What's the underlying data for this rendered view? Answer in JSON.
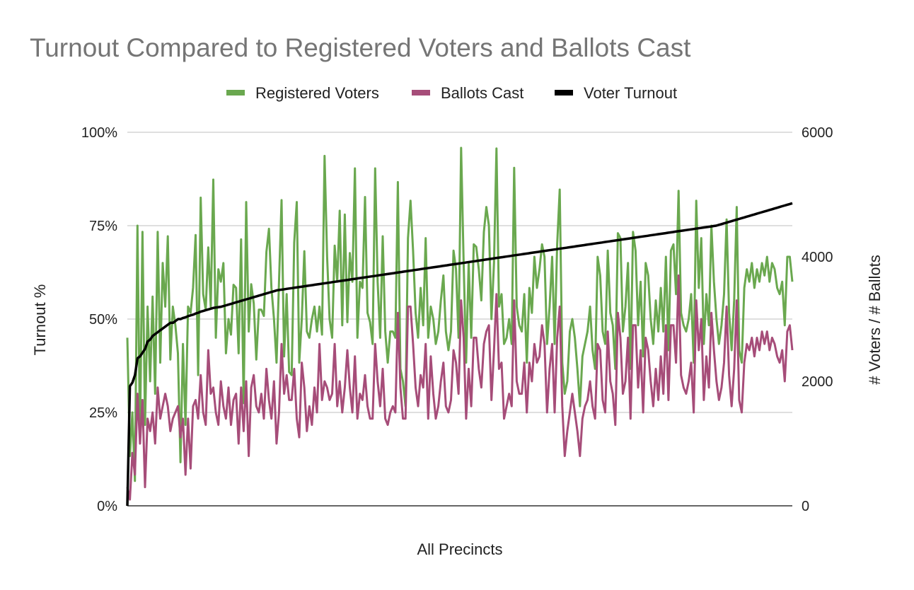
{
  "chart_data": {
    "type": "line",
    "title": "Turnout Compared to Registered Voters and Ballots Cast",
    "xlabel": "All Precincts",
    "ylabel_left": "Turnout %",
    "ylabel_right": "# Voters / # Ballots",
    "ylim_left": [
      0,
      1
    ],
    "ylim_right": [
      0,
      6000
    ],
    "left_ticks": [
      "0%",
      "25%",
      "50%",
      "75%",
      "100%"
    ],
    "right_ticks": [
      "0",
      "2000",
      "4000",
      "6000"
    ],
    "grid": true,
    "legend_position": "top",
    "colors": {
      "registered": "#6aa84f",
      "ballots": "#a64d79",
      "turnout": "#000000",
      "title": "#757575",
      "grid": "#cccccc"
    },
    "series": [
      {
        "name": "Registered Voters",
        "axis": "right",
        "values": [
          2700,
          800,
          1500,
          400,
          4500,
          1100,
          4400,
          1300,
          3200,
          2000,
          3360,
          1800,
          4400,
          2300,
          3900,
          3200,
          4330,
          2350,
          3200,
          2900,
          2450,
          700,
          2600,
          1300,
          3200,
          3100,
          3500,
          4350,
          2100,
          4950,
          3400,
          3150,
          4150,
          3200,
          5240,
          2700,
          3800,
          3600,
          3900,
          2450,
          3000,
          2750,
          3550,
          3500,
          2450,
          4280,
          1650,
          4880,
          2800,
          3560,
          3250,
          2350,
          3150,
          3150,
          3050,
          4080,
          4450,
          3500,
          3000,
          2300,
          3600,
          4910,
          2400,
          3400,
          2150,
          2100,
          4230,
          4880,
          2300,
          3000,
          4090,
          2800,
          2700,
          3000,
          3200,
          2800,
          3200,
          2750,
          5620,
          4000,
          3000,
          2700,
          4180,
          3600,
          4740,
          2900,
          4680,
          2950,
          4060,
          3600,
          5420,
          2700,
          3600,
          3500,
          4960,
          3100,
          2950,
          2600,
          5420,
          3600,
          2700,
          4330,
          2800,
          2300,
          2800,
          2800,
          2700,
          5200,
          2200,
          2000,
          1600,
          4300,
          4900,
          4100,
          3100,
          2700,
          3500,
          2900,
          4300,
          2700,
          3200,
          3000,
          2600,
          2800,
          3300,
          3700,
          2800,
          2500,
          2800,
          4100,
          3800,
          2700,
          5750,
          3900,
          2300,
          3900,
          2700,
          4200,
          4160,
          3800,
          3300,
          4400,
          4800,
          4500,
          3000,
          3900,
          5740,
          3200,
          3400,
          2600,
          2700,
          3000,
          2600,
          5430,
          3200,
          2900,
          2800,
          3400,
          2300,
          3500,
          3100,
          4000,
          3500,
          3800,
          4200,
          4000,
          2600,
          3200,
          4000,
          2600,
          4200,
          5080,
          2300,
          1800,
          2000,
          2800,
          3000,
          2700,
          2200,
          1600,
          2400,
          2600,
          2800,
          3200,
          2500,
          2200,
          4000,
          3700,
          2800,
          2600,
          4100,
          3100,
          2900,
          2200,
          4380,
          4300,
          2800,
          3200,
          3900,
          2200,
          4400,
          4100,
          2900,
          3600,
          2400,
          3900,
          3700,
          3000,
          2600,
          3300,
          2800,
          3500,
          2800,
          4000,
          2500,
          4100,
          4200,
          3400,
          5060,
          3100,
          2900,
          2800,
          3000,
          3400,
          2300,
          4900,
          3500,
          4300,
          2600,
          3400,
          2900,
          4500,
          3600,
          3000,
          2600,
          2900,
          3400,
          4600,
          3100,
          2500,
          3300,
          4800,
          2500,
          2300,
          3500,
          3800,
          3600,
          3900,
          3500,
          3800,
          3600,
          3900,
          3700,
          4000,
          3600,
          3900,
          3800,
          3500,
          3400,
          3600,
          2900,
          4000,
          4000,
          3600
        ]
      },
      {
        "name": "Ballots Cast",
        "axis": "right",
        "values": [
          300,
          100,
          850,
          500,
          1800,
          1000,
          1700,
          300,
          1400,
          1200,
          1500,
          1000,
          1900,
          1400,
          1600,
          1800,
          1600,
          1200,
          1400,
          1500,
          1600,
          1100,
          1400,
          500,
          1400,
          600,
          1600,
          1700,
          1400,
          2100,
          1500,
          1300,
          2500,
          1800,
          1900,
          1500,
          1300,
          2000,
          1600,
          1400,
          1900,
          1300,
          1700,
          1800,
          1000,
          1900,
          1200,
          2000,
          800,
          1900,
          2100,
          1600,
          1500,
          1800,
          1400,
          2200,
          1700,
          1400,
          2000,
          1000,
          1500,
          2600,
          1800,
          2100,
          1700,
          1700,
          2200,
          1400,
          1100,
          2300,
          1900,
          1200,
          1600,
          1300,
          1900,
          1500,
          2600,
          1700,
          2000,
          1900,
          1700,
          1800,
          2600,
          1600,
          2000,
          1500,
          1900,
          2500,
          1900,
          1500,
          2400,
          1400,
          1800,
          1700,
          2100,
          1600,
          1400,
          1400,
          2600,
          2000,
          1600,
          2200,
          1400,
          1300,
          1500,
          1600,
          1500,
          3100,
          1900,
          1400,
          1400,
          3200,
          3200,
          2600,
          1900,
          1600,
          2100,
          1900,
          2600,
          1400,
          2400,
          1800,
          1400,
          1600,
          2000,
          2300,
          1600,
          1500,
          1700,
          2500,
          2300,
          1800,
          3300,
          2700,
          1400,
          2200,
          1600,
          2700,
          2700,
          2200,
          1900,
          2600,
          2800,
          2900,
          1700,
          2500,
          3400,
          2200,
          2300,
          1400,
          1600,
          1800,
          1600,
          3300,
          2000,
          1800,
          1800,
          2300,
          1500,
          2300,
          2000,
          2600,
          2300,
          2400,
          2900,
          2600,
          1500,
          2200,
          2600,
          1500,
          2700,
          3200,
          1600,
          800,
          1200,
          1500,
          1800,
          1500,
          1200,
          800,
          1400,
          1600,
          1700,
          2000,
          1600,
          1400,
          2600,
          2500,
          1700,
          1500,
          2800,
          2000,
          1800,
          1300,
          3100,
          2700,
          1800,
          2000,
          2700,
          1400,
          2900,
          2900,
          1900,
          2500,
          1500,
          2700,
          2500,
          2000,
          1600,
          2200,
          1700,
          2400,
          1800,
          2900,
          1700,
          2900,
          2900,
          2300,
          3700,
          2100,
          1900,
          1800,
          2000,
          2300,
          1500,
          3300,
          2500,
          3000,
          1700,
          2400,
          1900,
          3100,
          2500,
          2000,
          1700,
          1900,
          2300,
          3200,
          2100,
          1600,
          2200,
          3300,
          1700,
          1500,
          2300,
          2600,
          2500,
          2700,
          2400,
          2700,
          2500,
          2800,
          2600,
          2800,
          2500,
          2700,
          2600,
          2400,
          2300,
          2500,
          2000,
          2800,
          2900,
          2500
        ]
      },
      {
        "name": "Voter Turnout",
        "axis": "left",
        "values": [
          0.0,
          0.32,
          0.33,
          0.35,
          0.395,
          0.4,
          0.41,
          0.42,
          0.44,
          0.445,
          0.455,
          0.46,
          0.465,
          0.47,
          0.475,
          0.48,
          0.485,
          0.49,
          0.49,
          0.495,
          0.5,
          0.5,
          0.503,
          0.505,
          0.508,
          0.51,
          0.512,
          0.515,
          0.517,
          0.52,
          0.522,
          0.524,
          0.526,
          0.528,
          0.53,
          0.531,
          0.532,
          0.533,
          0.535,
          0.537,
          0.539,
          0.541,
          0.543,
          0.545,
          0.547,
          0.549,
          0.551,
          0.553,
          0.555,
          0.557,
          0.559,
          0.561,
          0.563,
          0.565,
          0.567,
          0.569,
          0.571,
          0.573,
          0.575,
          0.577,
          0.578,
          0.579,
          0.58,
          0.581,
          0.582,
          0.583,
          0.584,
          0.585,
          0.586,
          0.587,
          0.588,
          0.589,
          0.59,
          0.591,
          0.592,
          0.593,
          0.594,
          0.595,
          0.596,
          0.597,
          0.598,
          0.599,
          0.6,
          0.601,
          0.602,
          0.603,
          0.604,
          0.605,
          0.606,
          0.607,
          0.608,
          0.609,
          0.61,
          0.611,
          0.612,
          0.613,
          0.614,
          0.615,
          0.616,
          0.617,
          0.618,
          0.619,
          0.62,
          0.621,
          0.622,
          0.623,
          0.624,
          0.625,
          0.626,
          0.627,
          0.628,
          0.629,
          0.63,
          0.631,
          0.632,
          0.633,
          0.634,
          0.635,
          0.636,
          0.637,
          0.638,
          0.639,
          0.64,
          0.641,
          0.642,
          0.643,
          0.644,
          0.645,
          0.646,
          0.647,
          0.648,
          0.649,
          0.65,
          0.651,
          0.652,
          0.653,
          0.654,
          0.655,
          0.656,
          0.657,
          0.658,
          0.659,
          0.66,
          0.661,
          0.662,
          0.663,
          0.664,
          0.665,
          0.666,
          0.667,
          0.668,
          0.669,
          0.67,
          0.671,
          0.672,
          0.673,
          0.674,
          0.675,
          0.676,
          0.677,
          0.678,
          0.679,
          0.68,
          0.681,
          0.682,
          0.683,
          0.684,
          0.685,
          0.686,
          0.687,
          0.688,
          0.689,
          0.69,
          0.691,
          0.692,
          0.693,
          0.694,
          0.695,
          0.696,
          0.697,
          0.698,
          0.699,
          0.7,
          0.701,
          0.702,
          0.703,
          0.704,
          0.705,
          0.706,
          0.707,
          0.708,
          0.709,
          0.71,
          0.711,
          0.712,
          0.713,
          0.714,
          0.715,
          0.716,
          0.717,
          0.718,
          0.719,
          0.72,
          0.721,
          0.722,
          0.723,
          0.724,
          0.725,
          0.726,
          0.727,
          0.728,
          0.729,
          0.73,
          0.731,
          0.732,
          0.733,
          0.734,
          0.735,
          0.736,
          0.737,
          0.738,
          0.739,
          0.74,
          0.741,
          0.742,
          0.743,
          0.744,
          0.745,
          0.746,
          0.747,
          0.748,
          0.749,
          0.75,
          0.752,
          0.754,
          0.756,
          0.758,
          0.76,
          0.762,
          0.764,
          0.766,
          0.768,
          0.77,
          0.772,
          0.774,
          0.776,
          0.778,
          0.78,
          0.782,
          0.784,
          0.786,
          0.788,
          0.79,
          0.792,
          0.794,
          0.796,
          0.798,
          0.8,
          0.802,
          0.804,
          0.806,
          0.808,
          0.81
        ]
      }
    ]
  }
}
